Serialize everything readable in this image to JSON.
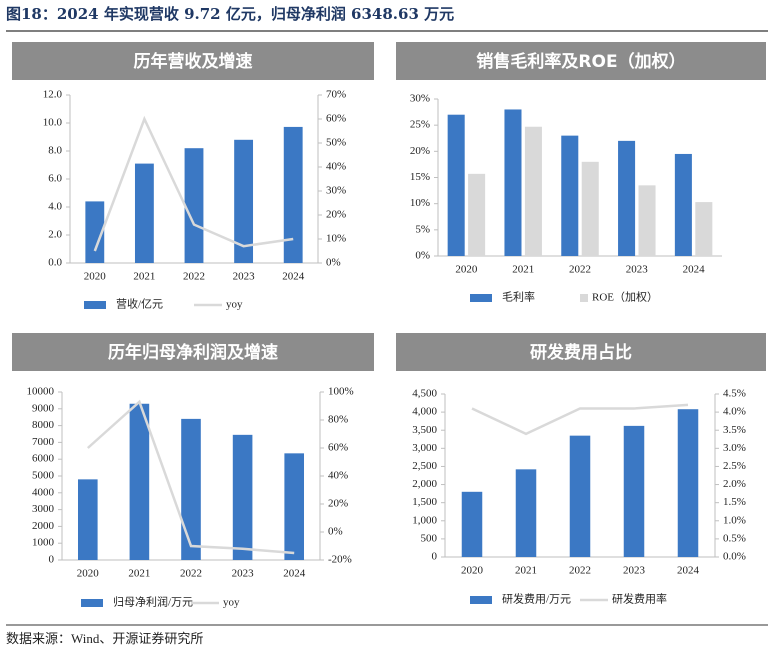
{
  "header": {
    "title": "图18：2024 年实现营收 9.72 亿元，归母净利润 6348.63 万元"
  },
  "chart_data": [
    {
      "type": "bar",
      "title": "历年营收及增速",
      "categories": [
        "2020",
        "2021",
        "2022",
        "2023",
        "2024"
      ],
      "series": [
        {
          "name": "营收/亿元",
          "type": "bar",
          "color": "#3b78c4",
          "values": [
            4.4,
            7.1,
            8.2,
            8.8,
            9.72
          ]
        },
        {
          "name": "yoy",
          "type": "line",
          "axis": "y2",
          "color": "#d9d9d9",
          "values": [
            5,
            60,
            16,
            7,
            10
          ]
        }
      ],
      "ylim": [
        0,
        12
      ],
      "yticks": [
        {
          "value": 0,
          "label": "0.0"
        },
        {
          "value": 2,
          "label": "2.0"
        },
        {
          "value": 4,
          "label": "4.0"
        },
        {
          "value": 6,
          "label": "6.0"
        },
        {
          "value": 8,
          "label": "8.0"
        },
        {
          "value": 10,
          "label": "10.0"
        },
        {
          "value": 12,
          "label": "12.0"
        }
      ],
      "y2lim": [
        0,
        70
      ],
      "y2ticks": [
        {
          "value": 0,
          "label": "0%"
        },
        {
          "value": 10,
          "label": "10%"
        },
        {
          "value": 20,
          "label": "20%"
        },
        {
          "value": 30,
          "label": "30%"
        },
        {
          "value": 40,
          "label": "40%"
        },
        {
          "value": 50,
          "label": "50%"
        },
        {
          "value": 60,
          "label": "60%"
        },
        {
          "value": 70,
          "label": "70%"
        }
      ]
    },
    {
      "type": "bar",
      "title": "销售毛利率及ROE（加权）",
      "categories": [
        "2020",
        "2021",
        "2022",
        "2023",
        "2024"
      ],
      "series": [
        {
          "name": "毛利率",
          "type": "bar",
          "color": "#3b78c4",
          "values": [
            27,
            28,
            23,
            22,
            19.5
          ]
        },
        {
          "name": "ROE（加权）",
          "type": "bar",
          "color": "#d9d9d9",
          "values": [
            15.7,
            24.7,
            18,
            13.5,
            10.3
          ]
        }
      ],
      "ylim": [
        0,
        30
      ],
      "yticks": [
        {
          "value": 0,
          "label": "0%"
        },
        {
          "value": 5,
          "label": "5%"
        },
        {
          "value": 10,
          "label": "10%"
        },
        {
          "value": 15,
          "label": "15%"
        },
        {
          "value": 20,
          "label": "20%"
        },
        {
          "value": 25,
          "label": "25%"
        },
        {
          "value": 30,
          "label": "30%"
        }
      ]
    },
    {
      "type": "bar",
      "title": "历年归母净利润及增速",
      "categories": [
        "2020",
        "2021",
        "2022",
        "2023",
        "2024"
      ],
      "series": [
        {
          "name": "归母净利润/万元",
          "type": "bar",
          "color": "#3b78c4",
          "values": [
            4800,
            9300,
            8400,
            7450,
            6348.63
          ]
        },
        {
          "name": "yoy",
          "type": "line",
          "axis": "y2",
          "color": "#d9d9d9",
          "values": [
            60,
            93,
            -10,
            -12,
            -15
          ]
        }
      ],
      "ylim": [
        0,
        10000
      ],
      "yticks": [
        0,
        1000,
        2000,
        3000,
        4000,
        5000,
        6000,
        7000,
        8000,
        9000,
        10000
      ],
      "y2lim": [
        -20,
        100
      ],
      "y2ticks": [
        {
          "value": -20,
          "label": "-20%"
        },
        {
          "value": 0,
          "label": "0%"
        },
        {
          "value": 20,
          "label": "20%"
        },
        {
          "value": 40,
          "label": "40%"
        },
        {
          "value": 60,
          "label": "60%"
        },
        {
          "value": 80,
          "label": "80%"
        },
        {
          "value": 100,
          "label": "100%"
        }
      ]
    },
    {
      "type": "bar",
      "title": "研发费用占比",
      "categories": [
        "2020",
        "2021",
        "2022",
        "2023",
        "2024"
      ],
      "series": [
        {
          "name": "研发费用/万元",
          "type": "bar",
          "color": "#3b78c4",
          "values": [
            1800,
            2420,
            3350,
            3620,
            4080
          ]
        },
        {
          "name": "研发费用率",
          "type": "line",
          "axis": "y2",
          "color": "#d9d9d9",
          "values": [
            4.1,
            3.4,
            4.1,
            4.1,
            4.2
          ]
        }
      ],
      "ylim": [
        0,
        4500
      ],
      "yticks": [
        0,
        500,
        {
          "value": 1000,
          "label": "1,000"
        },
        {
          "value": 1500,
          "label": "1,500"
        },
        {
          "value": 2000,
          "label": "2,000"
        },
        {
          "value": 2500,
          "label": "2,500"
        },
        {
          "value": 3000,
          "label": "3,000"
        },
        {
          "value": 3500,
          "label": "3,500"
        },
        {
          "value": 4000,
          "label": "4,000"
        },
        {
          "value": 4500,
          "label": "4,500"
        }
      ],
      "y2lim": [
        0,
        4.5
      ],
      "y2ticks": [
        {
          "value": 0,
          "label": "0.0%"
        },
        {
          "value": 0.5,
          "label": "0.5%"
        },
        {
          "value": 1,
          "label": "1.0%"
        },
        {
          "value": 1.5,
          "label": "1.5%"
        },
        {
          "value": 2,
          "label": "2.0%"
        },
        {
          "value": 2.5,
          "label": "2.5%"
        },
        {
          "value": 3,
          "label": "3.0%"
        },
        {
          "value": 3.5,
          "label": "3.5%"
        },
        {
          "value": 4,
          "label": "4.0%"
        },
        {
          "value": 4.5,
          "label": "4.5%"
        }
      ]
    }
  ],
  "footer": {
    "source": "数据来源：Wind、开源证券研究所"
  }
}
